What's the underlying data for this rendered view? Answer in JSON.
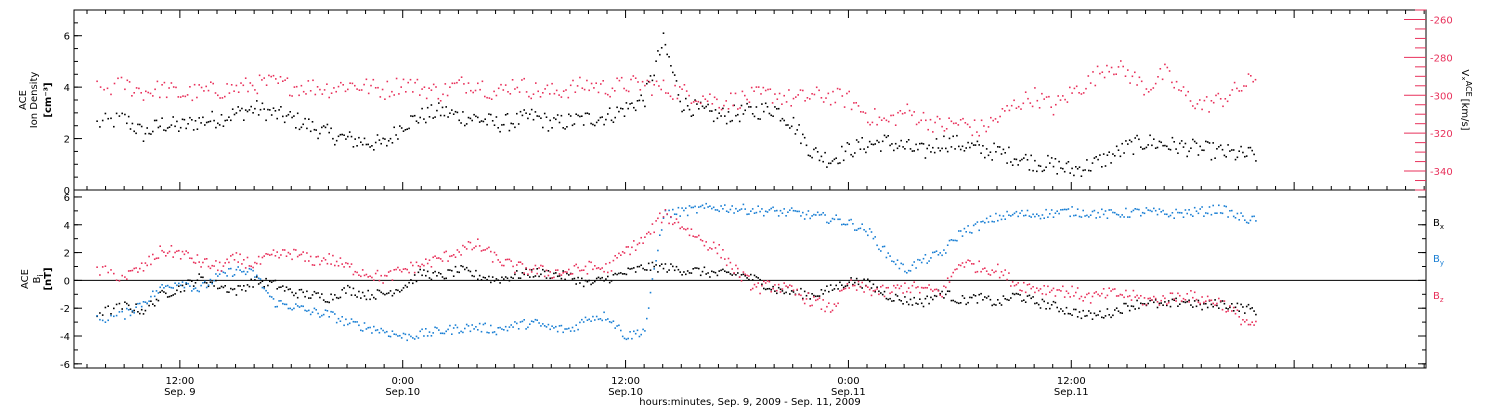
{
  "chart_data": [
    {
      "type": "scatter",
      "panel": "top",
      "ylabel_left": {
        "line1": "ACE",
        "line2": "Ion Density",
        "units": "[cm⁻³]"
      },
      "ylabel_right": {
        "main": "Vₓ",
        "sup": "ACE",
        "units": "[km/s]"
      },
      "left_ylim": [
        0,
        7
      ],
      "left_yticks": [
        "0",
        "2",
        "4",
        "6"
      ],
      "right_ylim": [
        -350,
        -255
      ],
      "right_yticks": [
        "-260",
        "-280",
        "-300",
        "-320",
        "-340"
      ],
      "colors": {
        "density": "#000000",
        "vx": "#e8315b"
      },
      "series": [
        {
          "key": "density",
          "axis": "left",
          "hours": [
            -4.5,
            -3,
            -2,
            -1,
            0,
            1,
            2,
            3,
            4,
            5,
            6,
            7,
            8,
            9,
            10,
            11,
            12,
            13,
            14,
            15,
            16,
            17,
            18,
            19,
            20,
            21,
            22,
            23,
            24,
            25,
            26,
            27,
            28,
            29,
            30,
            31,
            32,
            33,
            34,
            35,
            36,
            37,
            38,
            39,
            40,
            41,
            42,
            43,
            44,
            45,
            46,
            47,
            48,
            49,
            50,
            51,
            52,
            53,
            54,
            55,
            56,
            57,
            58
          ],
          "values": [
            2.6,
            2.8,
            2.2,
            2.6,
            2.5,
            2.7,
            2.8,
            3.0,
            3.2,
            3.0,
            2.8,
            2.5,
            2.2,
            2.0,
            1.9,
            1.8,
            2.6,
            2.9,
            3.1,
            2.9,
            2.8,
            2.6,
            2.7,
            2.9,
            2.6,
            2.7,
            2.8,
            2.9,
            3.2,
            3.6,
            5.8,
            3.4,
            3.1,
            2.9,
            3.0,
            3.1,
            3.2,
            2.6,
            1.5,
            1.2,
            1.6,
            1.8,
            1.9,
            1.7,
            1.5,
            1.9,
            1.8,
            1.6,
            1.5,
            1.3,
            1.1,
            1.0,
            0.8,
            1.0,
            1.3,
            1.7,
            1.9,
            1.8,
            1.7,
            1.6,
            1.5,
            1.4,
            1.4
          ]
        },
        {
          "key": "vx",
          "axis": "right",
          "hours": [
            -4.5,
            -3,
            -2,
            -1,
            0,
            1,
            2,
            3,
            4,
            5,
            6,
            7,
            8,
            9,
            10,
            11,
            12,
            13,
            14,
            15,
            16,
            17,
            18,
            19,
            20,
            21,
            22,
            23,
            24,
            25,
            26,
            27,
            28,
            29,
            30,
            31,
            32,
            33,
            34,
            35,
            36,
            37,
            38,
            39,
            40,
            41,
            42,
            43,
            44,
            45,
            46,
            47,
            48,
            49,
            50,
            51,
            52,
            53,
            54,
            55,
            56,
            57,
            58
          ],
          "values": [
            -297,
            -294,
            -298,
            -296,
            -299,
            -298,
            -297,
            -296,
            -294,
            -293,
            -295,
            -295,
            -296,
            -294,
            -295,
            -297,
            -293,
            -296,
            -298,
            -294,
            -293,
            -299,
            -293,
            -297,
            -298,
            -296,
            -294,
            -296,
            -294,
            -294,
            -296,
            -298,
            -300,
            -303,
            -302,
            -300,
            -299,
            -302,
            -300,
            -300,
            -302,
            -310,
            -314,
            -308,
            -312,
            -316,
            -314,
            -318,
            -312,
            -304,
            -300,
            -306,
            -298,
            -292,
            -283,
            -288,
            -296,
            -288,
            -299,
            -305,
            -302,
            -296,
            -290
          ]
        }
      ]
    },
    {
      "type": "scatter",
      "panel": "bottom",
      "ylabel": {
        "line1": "ACE",
        "main": "B",
        "sub": "i",
        "units": "[nT]"
      },
      "ylim": [
        -6.3,
        6.5
      ],
      "yticks": [
        "-6",
        "-4",
        "-2",
        "0",
        "2",
        "4",
        "6"
      ],
      "zero_line": true,
      "legend": [
        {
          "main": "B",
          "sub": "x",
          "color": "#000000"
        },
        {
          "main": "B",
          "sub": "y",
          "color": "#1a7fd4"
        },
        {
          "main": "B",
          "sub": "z",
          "color": "#e8315b"
        }
      ],
      "series": [
        {
          "key": "Bx",
          "hours": [
            -4.5,
            -3,
            -2,
            -1,
            0,
            1,
            2,
            3,
            4,
            5,
            6,
            7,
            8,
            9,
            10,
            11,
            12,
            13,
            14,
            15,
            16,
            17,
            18,
            19,
            20,
            21,
            22,
            23,
            24,
            25,
            26,
            27,
            28,
            29,
            30,
            31,
            32,
            33,
            34,
            35,
            36,
            37,
            38,
            39,
            40,
            41,
            42,
            43,
            44,
            45,
            46,
            47,
            48,
            49,
            50,
            51,
            52,
            53,
            54,
            55,
            56,
            57,
            58
          ],
          "values": [
            -2.3,
            -1.8,
            -2.1,
            -1.0,
            -0.5,
            0.2,
            -0.3,
            -0.7,
            0.0,
            -0.2,
            -0.8,
            -1.0,
            -1.2,
            -0.6,
            -1.0,
            -0.9,
            -0.4,
            0.6,
            0.3,
            0.8,
            0.4,
            0.1,
            0.4,
            0.6,
            0.5,
            0.3,
            -0.2,
            0.2,
            0.6,
            1.0,
            1.0,
            0.8,
            0.7,
            0.5,
            0.5,
            0.1,
            -0.6,
            -0.8,
            -1.0,
            -0.6,
            0.0,
            -0.2,
            -1.0,
            -1.4,
            -1.5,
            -0.8,
            -1.4,
            -1.2,
            -1.6,
            -1.0,
            -1.5,
            -1.8,
            -2.2,
            -2.5,
            -2.3,
            -1.8,
            -1.5,
            -1.8,
            -1.4,
            -1.8,
            -1.6,
            -1.9,
            -2.1
          ]
        },
        {
          "key": "By",
          "hours": [
            -4.5,
            -3,
            -2,
            -1,
            0,
            1,
            2,
            3,
            4,
            5,
            6,
            7,
            8,
            9,
            10,
            11,
            12,
            13,
            14,
            15,
            16,
            17,
            18,
            19,
            20,
            21,
            22,
            23,
            24,
            25,
            26,
            27,
            28,
            29,
            30,
            31,
            32,
            33,
            34,
            35,
            36,
            37,
            38,
            39,
            40,
            41,
            42,
            43,
            44,
            45,
            46,
            47,
            48,
            49,
            50,
            51,
            52,
            53,
            54,
            55,
            56,
            57,
            58
          ],
          "values": [
            -2.8,
            -2.4,
            -1.5,
            -0.5,
            0.0,
            -0.6,
            0.3,
            0.8,
            0.5,
            -1.5,
            -1.8,
            -2.2,
            -2.4,
            -3.0,
            -3.3,
            -3.6,
            -4.0,
            -3.8,
            -3.6,
            -3.4,
            -3.3,
            -3.5,
            -3.2,
            -3.0,
            -3.4,
            -3.5,
            -2.6,
            -2.5,
            -4.0,
            -3.5,
            4.8,
            5.0,
            5.2,
            5.3,
            5.2,
            5.1,
            5.0,
            4.9,
            4.7,
            4.5,
            4.2,
            3.6,
            2.0,
            0.8,
            1.5,
            2.0,
            3.5,
            4.0,
            4.6,
            4.8,
            4.8,
            4.9,
            5.0,
            4.9,
            4.8,
            4.9,
            5.0,
            4.8,
            4.9,
            5.0,
            5.2,
            4.6,
            4.3
          ]
        },
        {
          "key": "Bz",
          "hours": [
            -4.5,
            -3,
            -2,
            -1,
            0,
            1,
            2,
            3,
            4,
            5,
            6,
            7,
            8,
            9,
            10,
            11,
            12,
            13,
            14,
            15,
            16,
            17,
            18,
            19,
            20,
            21,
            22,
            23,
            24,
            25,
            26,
            27,
            28,
            29,
            30,
            31,
            32,
            33,
            34,
            35,
            36,
            37,
            38,
            39,
            40,
            41,
            42,
            43,
            44,
            45,
            46,
            47,
            48,
            49,
            50,
            51,
            52,
            53,
            54,
            55,
            56,
            57,
            58
          ],
          "values": [
            0.8,
            0.3,
            1.0,
            2.2,
            2.0,
            1.4,
            1.0,
            1.6,
            1.2,
            1.8,
            2.0,
            1.5,
            1.6,
            1.0,
            0.6,
            0.2,
            0.8,
            1.2,
            1.6,
            2.2,
            2.6,
            1.6,
            1.0,
            0.8,
            0.6,
            0.7,
            1.0,
            0.9,
            2.2,
            3.0,
            4.8,
            4.0,
            3.0,
            2.2,
            0.6,
            -0.5,
            -0.3,
            -0.8,
            -1.4,
            -2.0,
            -0.3,
            -0.6,
            -0.8,
            -0.4,
            -0.6,
            -0.8,
            1.4,
            1.0,
            0.8,
            -0.2,
            -0.5,
            -0.6,
            -0.8,
            -1.2,
            -0.9,
            -1.0,
            -1.4,
            -1.3,
            -1.0,
            -1.3,
            -1.5,
            -2.6,
            -3.4
          ]
        }
      ]
    }
  ],
  "x_axis": {
    "tick_labels": [
      {
        "hours": 0,
        "time": "12:00",
        "date": "Sep. 9"
      },
      {
        "hours": 12,
        "time": "0:00",
        "date": "Sep.10"
      },
      {
        "hours": 24,
        "time": "12:00",
        "date": "Sep.10"
      },
      {
        "hours": 36,
        "time": "0:00",
        "date": "Sep.11"
      },
      {
        "hours": 48,
        "time": "12:00",
        "date": "Sep.11"
      }
    ],
    "xlim_hours": [
      -5.7,
      67.1
    ],
    "xlabel": "hours:minutes, Sep.  9, 2009 - Sep. 11, 2009"
  }
}
